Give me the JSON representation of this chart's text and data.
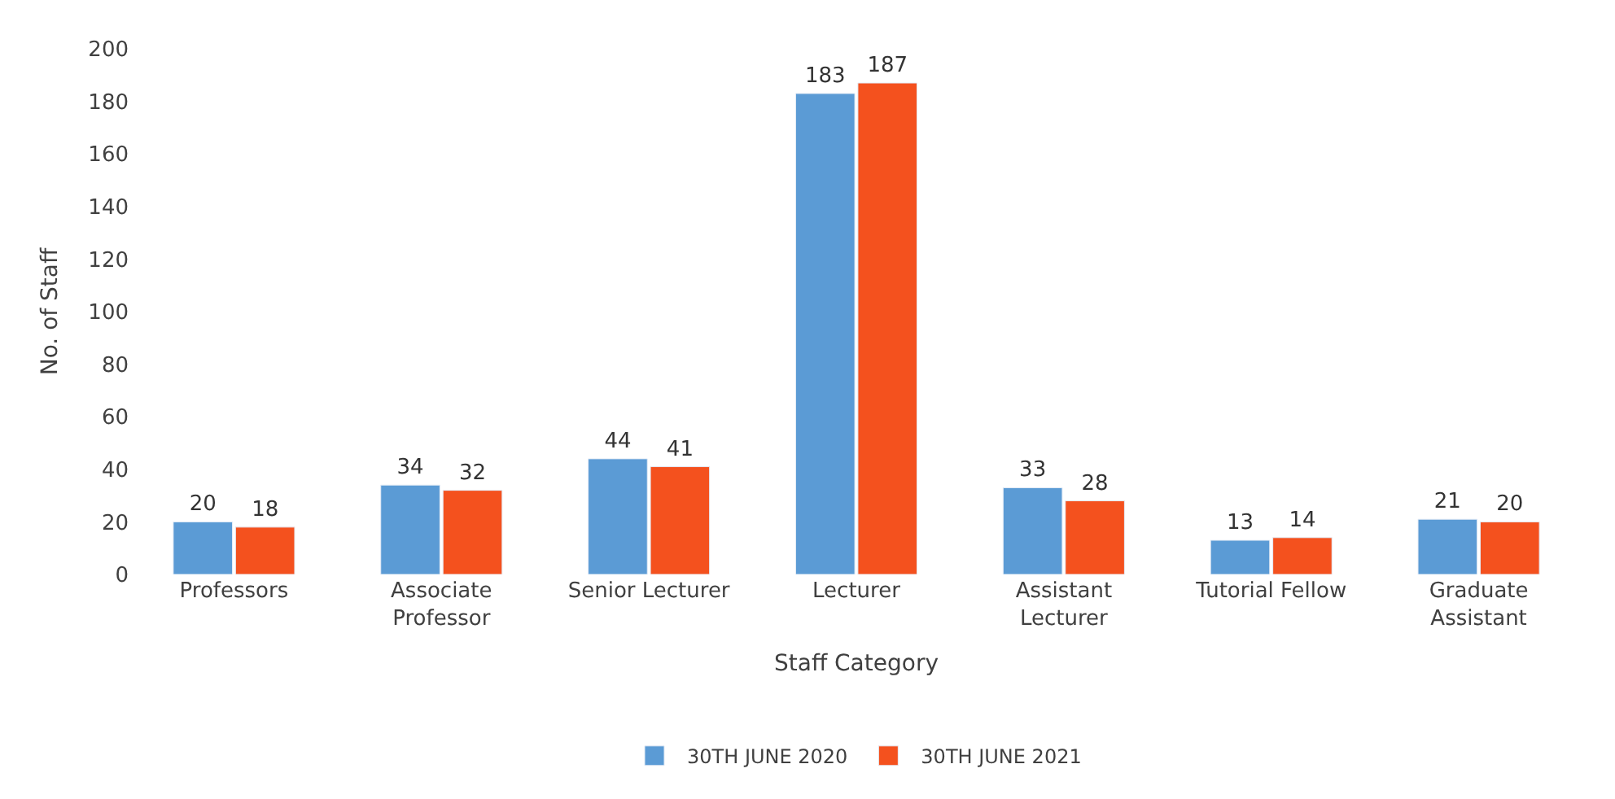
{
  "chart_data": {
    "type": "bar",
    "xlabel": "Staff Category",
    "ylabel": "No. of Staff",
    "categories": [
      "Professors",
      "Associate Professor",
      "Senior Lecturer",
      "Lecturer",
      "Assistant Lecturer",
      "Tutorial Fellow",
      "Graduate Assistant"
    ],
    "series": [
      {
        "name": "30TH JUNE 2020",
        "color": "#5b9bd5",
        "values": [
          20,
          34,
          44,
          183,
          33,
          13,
          21
        ]
      },
      {
        "name": "30TH JUNE 2021",
        "color": "#f4511e",
        "values": [
          18,
          32,
          41,
          187,
          28,
          14,
          20
        ]
      }
    ],
    "ylim": [
      0,
      200
    ],
    "yticks": [
      0,
      20,
      40,
      60,
      80,
      100,
      120,
      140,
      160,
      180,
      200
    ],
    "data_labels": true,
    "legend": "bottom",
    "grid": false
  }
}
